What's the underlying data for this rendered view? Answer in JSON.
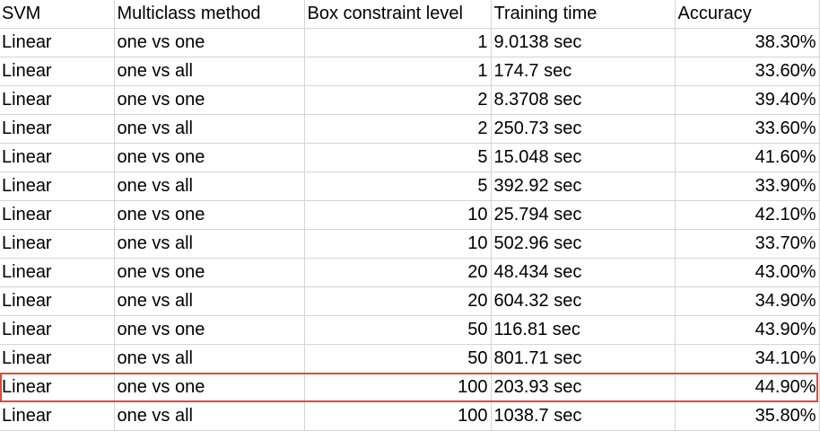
{
  "table": {
    "headers": [
      "SVM",
      "Multiclass method",
      "Box constraint level",
      "Training time",
      "Accuracy"
    ],
    "rows": [
      [
        "Linear",
        "one vs one",
        "1",
        "9.0138 sec",
        "38.30%"
      ],
      [
        "Linear",
        "one vs all",
        "1",
        "174.7 sec",
        "33.60%"
      ],
      [
        "Linear",
        "one vs one",
        "2",
        "8.3708 sec",
        "39.40%"
      ],
      [
        "Linear",
        "one vs all",
        "2",
        "250.73 sec",
        "33.60%"
      ],
      [
        "Linear",
        "one vs one",
        "5",
        "15.048 sec",
        "41.60%"
      ],
      [
        "Linear",
        "one vs all",
        "5",
        "392.92 sec",
        "33.90%"
      ],
      [
        "Linear",
        "one vs one",
        "10",
        "25.794 sec",
        "42.10%"
      ],
      [
        "Linear",
        "one vs all",
        "10",
        "502.96 sec",
        "33.70%"
      ],
      [
        "Linear",
        "one vs one",
        "20",
        "48.434 sec",
        "43.00%"
      ],
      [
        "Linear",
        "one vs all",
        "20",
        "604.32 sec",
        "34.90%"
      ],
      [
        "Linear",
        "one vs one",
        "50",
        "116.81 sec",
        "43.90%"
      ],
      [
        "Linear",
        "one vs all",
        "50",
        "801.71 sec",
        "34.10%"
      ],
      [
        "Linear",
        "one vs one",
        "100",
        "203.93 sec",
        "44.90%"
      ],
      [
        "Linear",
        "one vs all",
        "100",
        "1038.7 sec",
        "35.80%"
      ]
    ],
    "highlighted_row_index": 12,
    "highlight_color": "#e0493a",
    "grid_color": "#d4d4d4"
  }
}
